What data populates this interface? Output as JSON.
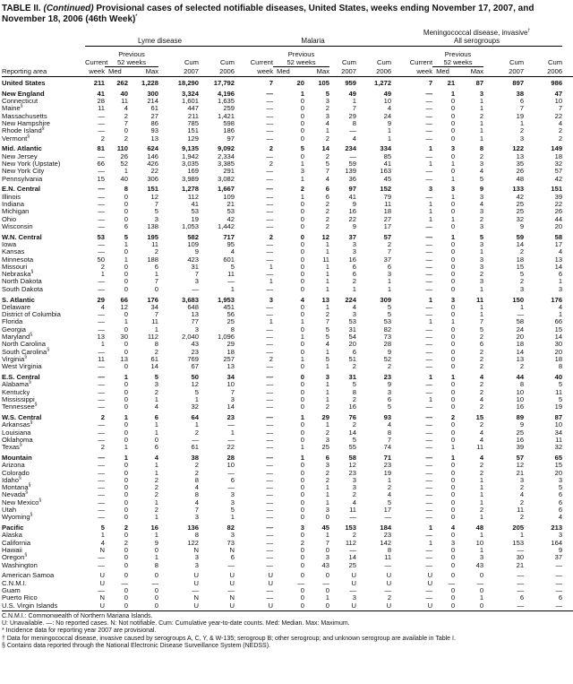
{
  "title": {
    "prefix": "TABLE II. ",
    "continued": "(Continued)",
    "text": " Provisional cases of selected notifiable diseases, United States, weeks ending November 17, 2007, and November 18, 2006 (46th Week)",
    "mark": "*"
  },
  "headers": {
    "reporting_area": "Reporting area",
    "groups": [
      "Lyme disease",
      "Malaria",
      "Meningococcal disease, invasive"
    ],
    "mening_mark": "†",
    "mening_sub": "All serogroups",
    "current": "Current",
    "week": "week",
    "previous": "Previous",
    "weeks52": "52 weeks",
    "med": "Med",
    "max": "Max",
    "cum": "Cum",
    "y2007": "2007",
    "y2006": "2006"
  },
  "rows": [
    {
      "area": "United States",
      "bold": true,
      "v": [
        "211",
        "262",
        "1,228",
        "18,290",
        "17,792",
        "7",
        "20",
        "105",
        "959",
        "1,272",
        "7",
        "21",
        "87",
        "897",
        "986"
      ]
    },
    {
      "area": "New England",
      "bold": true,
      "gap": true,
      "v": [
        "41",
        "40",
        "300",
        "3,324",
        "4,196",
        "—",
        "1",
        "5",
        "49",
        "49",
        "—",
        "1",
        "3",
        "38",
        "47"
      ]
    },
    {
      "area": "Connecticut",
      "v": [
        "28",
        "11",
        "214",
        "1,601",
        "1,635",
        "—",
        "0",
        "3",
        "1",
        "10",
        "—",
        "0",
        "1",
        "6",
        "10"
      ]
    },
    {
      "area": "Maine",
      "sup": "§",
      "v": [
        "11",
        "4",
        "61",
        "447",
        "259",
        "—",
        "0",
        "2",
        "7",
        "4",
        "—",
        "0",
        "1",
        "7",
        "7"
      ]
    },
    {
      "area": "Massachusetts",
      "v": [
        "—",
        "2",
        "27",
        "211",
        "1,421",
        "—",
        "0",
        "3",
        "29",
        "24",
        "—",
        "0",
        "2",
        "19",
        "22"
      ]
    },
    {
      "area": "New Hampshire",
      "v": [
        "—",
        "7",
        "86",
        "785",
        "598",
        "—",
        "0",
        "4",
        "8",
        "9",
        "—",
        "0",
        "1",
        "1",
        "4"
      ]
    },
    {
      "area": "Rhode Island",
      "sup": "§",
      "v": [
        "—",
        "0",
        "93",
        "151",
        "186",
        "—",
        "0",
        "1",
        "—",
        "1",
        "—",
        "0",
        "1",
        "2",
        "2"
      ]
    },
    {
      "area": "Vermont",
      "sup": "§",
      "v": [
        "2",
        "2",
        "13",
        "129",
        "97",
        "—",
        "0",
        "2",
        "4",
        "1",
        "—",
        "0",
        "1",
        "3",
        "2"
      ]
    },
    {
      "area": "Mid. Atlantic",
      "bold": true,
      "gap": true,
      "v": [
        "81",
        "110",
        "624",
        "9,135",
        "9,092",
        "2",
        "5",
        "14",
        "234",
        "334",
        "1",
        "3",
        "8",
        "122",
        "149"
      ]
    },
    {
      "area": "New Jersey",
      "v": [
        "—",
        "26",
        "146",
        "1,942",
        "2,334",
        "—",
        "0",
        "2",
        "—",
        "85",
        "—",
        "0",
        "2",
        "13",
        "18"
      ]
    },
    {
      "area": "New York (Upstate)",
      "v": [
        "66",
        "52",
        "426",
        "3,035",
        "3,385",
        "2",
        "1",
        "5",
        "59",
        "41",
        "1",
        "1",
        "3",
        "35",
        "32"
      ]
    },
    {
      "area": "New York City",
      "v": [
        "—",
        "1",
        "22",
        "169",
        "291",
        "—",
        "3",
        "7",
        "139",
        "163",
        "—",
        "0",
        "4",
        "26",
        "57"
      ]
    },
    {
      "area": "Pennsylvania",
      "v": [
        "15",
        "40",
        "306",
        "3,989",
        "3,082",
        "—",
        "1",
        "4",
        "36",
        "45",
        "—",
        "1",
        "5",
        "48",
        "42"
      ]
    },
    {
      "area": "E.N. Central",
      "bold": true,
      "gap": true,
      "v": [
        "—",
        "8",
        "151",
        "1,278",
        "1,667",
        "—",
        "2",
        "6",
        "97",
        "152",
        "3",
        "3",
        "9",
        "133",
        "151"
      ]
    },
    {
      "area": "Illinois",
      "v": [
        "—",
        "0",
        "12",
        "112",
        "109",
        "—",
        "1",
        "6",
        "41",
        "79",
        "—",
        "1",
        "3",
        "42",
        "39"
      ]
    },
    {
      "area": "Indiana",
      "v": [
        "—",
        "0",
        "7",
        "41",
        "21",
        "—",
        "0",
        "2",
        "9",
        "11",
        "1",
        "0",
        "4",
        "25",
        "22"
      ]
    },
    {
      "area": "Michigan",
      "v": [
        "—",
        "0",
        "5",
        "53",
        "53",
        "—",
        "0",
        "2",
        "16",
        "18",
        "1",
        "0",
        "3",
        "25",
        "26"
      ]
    },
    {
      "area": "Ohio",
      "v": [
        "—",
        "0",
        "3",
        "19",
        "42",
        "—",
        "0",
        "2",
        "22",
        "27",
        "1",
        "1",
        "2",
        "32",
        "44"
      ]
    },
    {
      "area": "Wisconsin",
      "v": [
        "—",
        "6",
        "138",
        "1,053",
        "1,442",
        "—",
        "0",
        "2",
        "9",
        "17",
        "—",
        "0",
        "3",
        "9",
        "20"
      ]
    },
    {
      "area": "W.N. Central",
      "bold": true,
      "gap": true,
      "v": [
        "53",
        "5",
        "195",
        "582",
        "717",
        "2",
        "0",
        "12",
        "37",
        "57",
        "—",
        "1",
        "5",
        "59",
        "58"
      ]
    },
    {
      "area": "Iowa",
      "v": [
        "—",
        "1",
        "11",
        "109",
        "95",
        "—",
        "0",
        "1",
        "3",
        "2",
        "—",
        "0",
        "3",
        "14",
        "17"
      ]
    },
    {
      "area": "Kansas",
      "v": [
        "—",
        "0",
        "2",
        "9",
        "4",
        "—",
        "0",
        "1",
        "3",
        "7",
        "—",
        "0",
        "1",
        "2",
        "4"
      ]
    },
    {
      "area": "Minnesota",
      "v": [
        "50",
        "1",
        "188",
        "423",
        "601",
        "—",
        "0",
        "11",
        "16",
        "37",
        "—",
        "0",
        "3",
        "18",
        "13"
      ]
    },
    {
      "area": "Missouri",
      "v": [
        "2",
        "0",
        "6",
        "31",
        "5",
        "1",
        "0",
        "1",
        "6",
        "6",
        "—",
        "0",
        "3",
        "15",
        "14"
      ]
    },
    {
      "area": "Nebraska",
      "sup": "§",
      "v": [
        "1",
        "0",
        "1",
        "7",
        "11",
        "—",
        "0",
        "1",
        "6",
        "3",
        "—",
        "0",
        "2",
        "5",
        "6"
      ]
    },
    {
      "area": "North Dakota",
      "v": [
        "—",
        "0",
        "7",
        "3",
        "—",
        "1",
        "0",
        "1",
        "2",
        "1",
        "—",
        "0",
        "3",
        "2",
        "1"
      ]
    },
    {
      "area": "South Dakota",
      "v": [
        "—",
        "0",
        "0",
        "—",
        "1",
        "—",
        "0",
        "1",
        "1",
        "1",
        "—",
        "0",
        "1",
        "3",
        "3"
      ]
    },
    {
      "area": "S. Atlantic",
      "bold": true,
      "gap": true,
      "v": [
        "29",
        "66",
        "176",
        "3,683",
        "1,953",
        "3",
        "4",
        "13",
        "224",
        "309",
        "1",
        "3",
        "11",
        "150",
        "176"
      ]
    },
    {
      "area": "Delaware",
      "v": [
        "4",
        "12",
        "34",
        "648",
        "451",
        "—",
        "0",
        "1",
        "4",
        "5",
        "—",
        "0",
        "1",
        "1",
        "4"
      ]
    },
    {
      "area": "District of Columbia",
      "v": [
        "—",
        "0",
        "7",
        "13",
        "56",
        "—",
        "0",
        "2",
        "3",
        "5",
        "—",
        "0",
        "1",
        "—",
        "1"
      ]
    },
    {
      "area": "Florida",
      "v": [
        "—",
        "1",
        "11",
        "77",
        "25",
        "1",
        "1",
        "7",
        "53",
        "53",
        "1",
        "1",
        "7",
        "58",
        "66"
      ]
    },
    {
      "area": "Georgia",
      "v": [
        "—",
        "0",
        "1",
        "3",
        "8",
        "—",
        "0",
        "5",
        "31",
        "82",
        "—",
        "0",
        "5",
        "24",
        "15"
      ]
    },
    {
      "area": "Maryland",
      "sup": "§",
      "v": [
        "13",
        "30",
        "112",
        "2,040",
        "1,096",
        "—",
        "1",
        "5",
        "54",
        "73",
        "—",
        "0",
        "2",
        "20",
        "14"
      ]
    },
    {
      "area": "North Carolina",
      "v": [
        "1",
        "0",
        "8",
        "43",
        "29",
        "—",
        "0",
        "4",
        "20",
        "28",
        "—",
        "0",
        "6",
        "18",
        "30"
      ]
    },
    {
      "area": "South Carolina",
      "sup": "§",
      "v": [
        "—",
        "0",
        "2",
        "23",
        "18",
        "—",
        "0",
        "1",
        "6",
        "9",
        "—",
        "0",
        "2",
        "14",
        "20"
      ]
    },
    {
      "area": "Virginia",
      "sup": "§",
      "v": [
        "11",
        "13",
        "61",
        "769",
        "257",
        "2",
        "1",
        "5",
        "51",
        "52",
        "—",
        "0",
        "2",
        "13",
        "18"
      ]
    },
    {
      "area": "West Virginia",
      "v": [
        "—",
        "0",
        "14",
        "67",
        "13",
        "—",
        "0",
        "1",
        "2",
        "2",
        "—",
        "0",
        "2",
        "2",
        "8"
      ]
    },
    {
      "area": "E.S. Central",
      "bold": true,
      "gap": true,
      "v": [
        "—",
        "1",
        "5",
        "50",
        "34",
        "—",
        "0",
        "3",
        "31",
        "23",
        "1",
        "1",
        "4",
        "44",
        "40"
      ]
    },
    {
      "area": "Alabama",
      "sup": "§",
      "v": [
        "—",
        "0",
        "3",
        "12",
        "10",
        "—",
        "0",
        "1",
        "5",
        "9",
        "—",
        "0",
        "2",
        "8",
        "5"
      ]
    },
    {
      "area": "Kentucky",
      "v": [
        "—",
        "0",
        "2",
        "5",
        "7",
        "—",
        "0",
        "1",
        "8",
        "3",
        "—",
        "0",
        "2",
        "10",
        "11"
      ]
    },
    {
      "area": "Mississippi",
      "v": [
        "—",
        "0",
        "1",
        "1",
        "3",
        "—",
        "0",
        "1",
        "2",
        "6",
        "1",
        "0",
        "4",
        "10",
        "5"
      ]
    },
    {
      "area": "Tennessee",
      "sup": "§",
      "v": [
        "—",
        "0",
        "4",
        "32",
        "14",
        "—",
        "0",
        "2",
        "16",
        "5",
        "—",
        "0",
        "2",
        "16",
        "19"
      ]
    },
    {
      "area": "W.S. Central",
      "bold": true,
      "gap": true,
      "v": [
        "2",
        "1",
        "6",
        "64",
        "23",
        "—",
        "1",
        "29",
        "76",
        "93",
        "—",
        "2",
        "15",
        "89",
        "87"
      ]
    },
    {
      "area": "Arkansas",
      "sup": "§",
      "v": [
        "—",
        "0",
        "1",
        "1",
        "—",
        "—",
        "0",
        "1",
        "2",
        "4",
        "—",
        "0",
        "2",
        "9",
        "10"
      ]
    },
    {
      "area": "Louisiana",
      "v": [
        "—",
        "0",
        "1",
        "2",
        "1",
        "—",
        "0",
        "2",
        "14",
        "8",
        "—",
        "0",
        "4",
        "25",
        "34"
      ]
    },
    {
      "area": "Oklahoma",
      "v": [
        "—",
        "0",
        "0",
        "—",
        "—",
        "—",
        "0",
        "3",
        "5",
        "7",
        "—",
        "0",
        "4",
        "16",
        "11"
      ]
    },
    {
      "area": "Texas",
      "sup": "§",
      "v": [
        "2",
        "1",
        "6",
        "61",
        "22",
        "—",
        "1",
        "25",
        "55",
        "74",
        "—",
        "1",
        "11",
        "39",
        "32"
      ]
    },
    {
      "area": "Mountain",
      "bold": true,
      "gap": true,
      "v": [
        "—",
        "1",
        "4",
        "38",
        "28",
        "—",
        "1",
        "6",
        "58",
        "71",
        "—",
        "1",
        "4",
        "57",
        "65"
      ]
    },
    {
      "area": "Arizona",
      "v": [
        "—",
        "0",
        "1",
        "2",
        "10",
        "—",
        "0",
        "3",
        "12",
        "23",
        "—",
        "0",
        "2",
        "12",
        "15"
      ]
    },
    {
      "area": "Colorado",
      "v": [
        "—",
        "0",
        "1",
        "2",
        "—",
        "—",
        "0",
        "2",
        "23",
        "19",
        "—",
        "0",
        "2",
        "21",
        "20"
      ]
    },
    {
      "area": "Idaho",
      "sup": "§",
      "v": [
        "—",
        "0",
        "2",
        "8",
        "6",
        "—",
        "0",
        "2",
        "3",
        "1",
        "—",
        "0",
        "1",
        "3",
        "3"
      ]
    },
    {
      "area": "Montana",
      "sup": "§",
      "v": [
        "—",
        "0",
        "2",
        "4",
        "—",
        "—",
        "0",
        "1",
        "3",
        "2",
        "—",
        "0",
        "1",
        "2",
        "5"
      ]
    },
    {
      "area": "Nevada",
      "sup": "§",
      "v": [
        "—",
        "0",
        "2",
        "8",
        "3",
        "—",
        "0",
        "1",
        "2",
        "4",
        "—",
        "0",
        "1",
        "4",
        "6"
      ]
    },
    {
      "area": "New Mexico",
      "sup": "§",
      "v": [
        "—",
        "0",
        "1",
        "4",
        "3",
        "—",
        "0",
        "1",
        "4",
        "5",
        "—",
        "0",
        "1",
        "2",
        "6"
      ]
    },
    {
      "area": "Utah",
      "v": [
        "—",
        "0",
        "2",
        "7",
        "5",
        "—",
        "0",
        "3",
        "11",
        "17",
        "—",
        "0",
        "2",
        "11",
        "6"
      ]
    },
    {
      "area": "Wyoming",
      "sup": "§",
      "v": [
        "—",
        "0",
        "1",
        "3",
        "1",
        "—",
        "0",
        "0",
        "—",
        "—",
        "—",
        "0",
        "1",
        "2",
        "4"
      ]
    },
    {
      "area": "Pacific",
      "bold": true,
      "gap": true,
      "v": [
        "5",
        "2",
        "16",
        "136",
        "82",
        "—",
        "3",
        "45",
        "153",
        "184",
        "1",
        "4",
        "48",
        "205",
        "213"
      ]
    },
    {
      "area": "Alaska",
      "v": [
        "1",
        "0",
        "1",
        "8",
        "3",
        "—",
        "0",
        "1",
        "2",
        "23",
        "—",
        "0",
        "1",
        "1",
        "3"
      ]
    },
    {
      "area": "California",
      "v": [
        "4",
        "2",
        "9",
        "122",
        "73",
        "—",
        "2",
        "7",
        "112",
        "142",
        "1",
        "3",
        "10",
        "153",
        "164"
      ]
    },
    {
      "area": "Hawaii",
      "v": [
        "N",
        "0",
        "0",
        "N",
        "N",
        "—",
        "0",
        "0",
        "—",
        "8",
        "—",
        "0",
        "1",
        "—",
        "9"
      ]
    },
    {
      "area": "Oregon",
      "sup": "§",
      "v": [
        "—",
        "0",
        "1",
        "3",
        "6",
        "—",
        "0",
        "3",
        "14",
        "11",
        "—",
        "0",
        "3",
        "30",
        "37"
      ]
    },
    {
      "area": "Washington",
      "v": [
        "—",
        "0",
        "8",
        "3",
        "—",
        "—",
        "0",
        "43",
        "25",
        "—",
        "—",
        "0",
        "43",
        "21",
        "—"
      ]
    },
    {
      "area": "American Samoa",
      "gap": true,
      "v": [
        "U",
        "0",
        "0",
        "U",
        "U",
        "U",
        "0",
        "0",
        "U",
        "U",
        "U",
        "0",
        "0",
        "—",
        "—"
      ]
    },
    {
      "area": "C.N.M.I.",
      "v": [
        "U",
        "—",
        "—",
        "U",
        "U",
        "U",
        "—",
        "—",
        "U",
        "U",
        "U",
        "—",
        "—",
        "—",
        "—"
      ]
    },
    {
      "area": "Guam",
      "v": [
        "—",
        "0",
        "0",
        "—",
        "—",
        "—",
        "0",
        "0",
        "—",
        "—",
        "—",
        "0",
        "0",
        "—",
        "—"
      ]
    },
    {
      "area": "Puerto Rico",
      "v": [
        "N",
        "0",
        "0",
        "N",
        "N",
        "—",
        "0",
        "1",
        "3",
        "2",
        "—",
        "0",
        "1",
        "6",
        "6"
      ]
    },
    {
      "area": "U.S. Virgin Islands",
      "last": true,
      "v": [
        "U",
        "0",
        "0",
        "U",
        "U",
        "U",
        "0",
        "0",
        "U",
        "U",
        "U",
        "0",
        "0",
        "—",
        "—"
      ]
    }
  ],
  "footnotes": [
    "C.N.M.I.: Commonwealth of Northern Mariana Islands.",
    "U: Unavailable.    —: No reported cases.    N: Not notifiable.    Cum: Cumulative year-to-date counts.    Med: Median.    Max: Maximum.",
    "* Incidence data for reporting year 2007 are provisional.",
    "† Data for meningococcal disease, invasive caused by serogroups A, C, Y, & W-135; serogroup B; other serogroup; and unknown serogroup are available in Table I.",
    "§ Contains data reported through the National Electronic Disease Surveillance System (NEDSS)."
  ]
}
